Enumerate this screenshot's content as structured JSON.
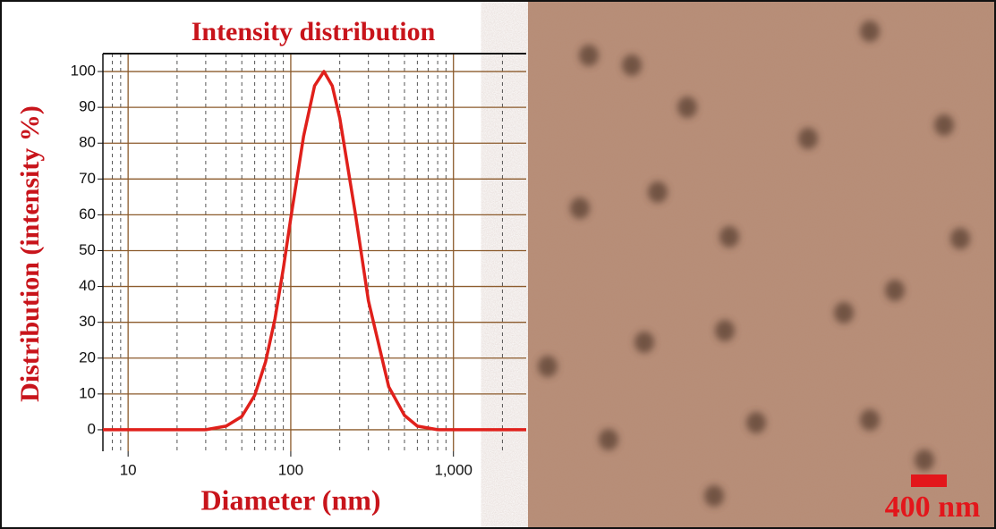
{
  "chart_data": {
    "type": "line",
    "title": "Intensity distribution",
    "x_label": "Diameter (nm)",
    "y_label": "Distribution (intensity %)",
    "log_x": true,
    "grid": true,
    "color": "#e0201b",
    "x": [
      7,
      30,
      40,
      50,
      60,
      70,
      80,
      90,
      100,
      120,
      140,
      160,
      180,
      200,
      250,
      300,
      400,
      500,
      600,
      800,
      2800
    ],
    "values": [
      0,
      0,
      1,
      3.7,
      9.6,
      19,
      31,
      45,
      59,
      82,
      96,
      100,
      96,
      87,
      60,
      36,
      12,
      4,
      1,
      0,
      0
    ],
    "xlim": [
      7,
      2800
    ],
    "ylim": [
      -6,
      105
    ],
    "xticks": [
      10,
      100,
      {
        "value": 1000,
        "label": "1,000"
      }
    ],
    "yticks": [
      0,
      10,
      20,
      30,
      40,
      50,
      60,
      70,
      80,
      90,
      100
    ]
  },
  "image": {
    "scale_bar_label": "400 nm"
  }
}
